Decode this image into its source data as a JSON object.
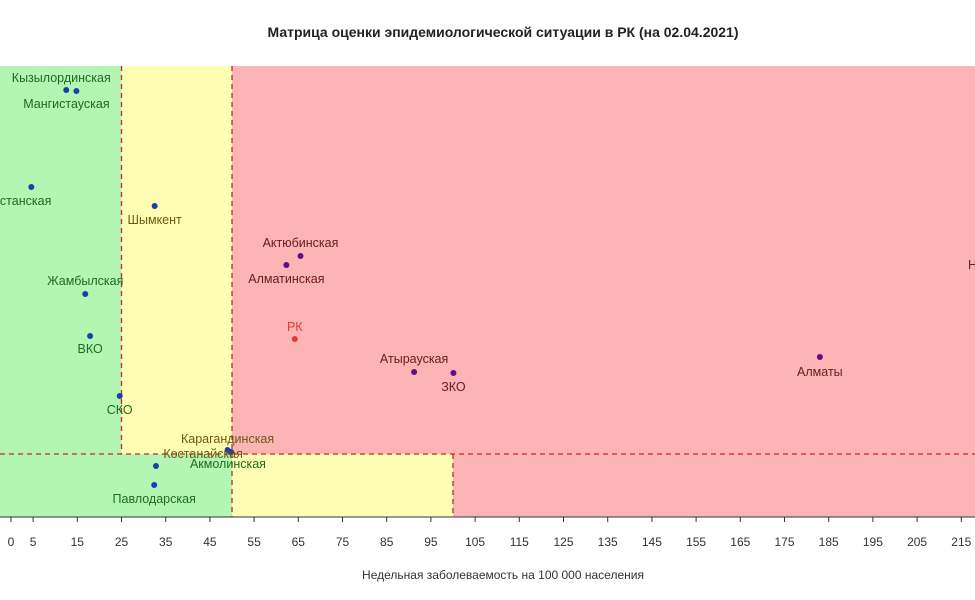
{
  "chart_data": {
    "type": "scatter",
    "title": "Матрица оценки эпидемиологической ситуации в РК (на 02.04.2021)",
    "xlabel": "Недельная заболеваемость на 100 000 населения",
    "ylabel": "",
    "x_ticks": [
      0,
      5,
      15,
      25,
      35,
      45,
      55,
      65,
      75,
      85,
      95,
      105,
      115,
      125,
      135,
      145,
      155,
      165,
      175,
      185,
      195,
      205,
      215
    ],
    "xlim": [
      0,
      221
    ],
    "x_thresholds": [
      25,
      50,
      100
    ],
    "zones": {
      "green": "#b3f5b3",
      "yellow": "#fdfdb3",
      "red": "#fcb4b4",
      "threshold_line": "#c62828"
    },
    "points": [
      {
        "name": "Кызылординская",
        "x": 12.5,
        "zone": "green"
      },
      {
        "name": "Мангистауская",
        "x": 14.8,
        "zone": "green"
      },
      {
        "name": "Туркестанская",
        "x": 4.6,
        "zone": "green",
        "label_shown": "ркестанская"
      },
      {
        "name": "Шымкент",
        "x": 32.5,
        "zone": "yellow"
      },
      {
        "name": "Жамбылская",
        "x": 16.8,
        "zone": "green"
      },
      {
        "name": "ВКО",
        "x": 17.9,
        "zone": "green"
      },
      {
        "name": "СКО",
        "x": 24.6,
        "zone": "green"
      },
      {
        "name": "Актюбинская",
        "x": 65.5,
        "zone": "red"
      },
      {
        "name": "Алматинская",
        "x": 62.3,
        "zone": "red"
      },
      {
        "name": "РК",
        "x": 64.2,
        "zone": "red",
        "highlight": "#e53935"
      },
      {
        "name": "Атырауская",
        "x": 91.2,
        "zone": "red"
      },
      {
        "name": "ЗКО",
        "x": 100.1,
        "zone": "red"
      },
      {
        "name": "Алматы",
        "x": 183.0,
        "zone": "red"
      },
      {
        "name": "Нур-Султан",
        "x": 221.5,
        "zone": "red",
        "label_shown": "Нур"
      },
      {
        "name": "Карагандинская",
        "x": 49.0,
        "zone": "yellow"
      },
      {
        "name": "Костанайская",
        "x": 49.8,
        "zone": "yellow"
      },
      {
        "name": "Акмолинская",
        "x": 32.8,
        "zone": "green"
      },
      {
        "name": "Павлодарская",
        "x": 32.4,
        "zone": "green"
      }
    ]
  }
}
